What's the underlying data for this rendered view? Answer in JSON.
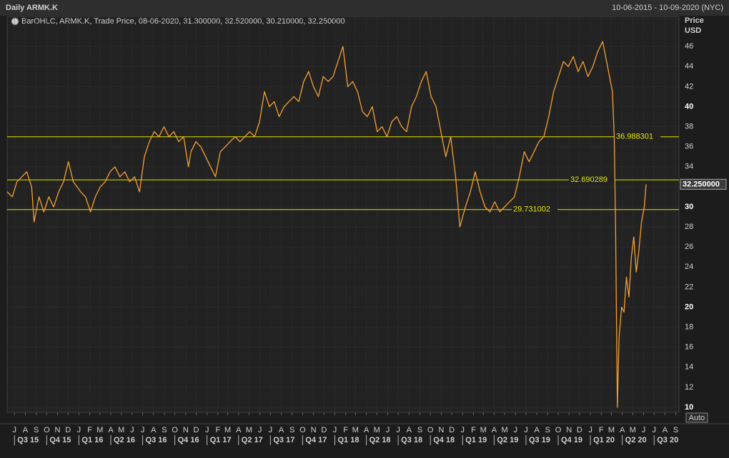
{
  "chart_data": {
    "type": "line",
    "title": "Daily ARMK.K",
    "date_range": "10-06-2015 - 10-09-2020 (NYC)",
    "legend_text": "BarOHLC, ARMK.K, Trade Price, 08-06-2020, 31.300000, 32.520000, 30.210000, 32.250000",
    "ylabel": "Price",
    "yunit": "USD",
    "auto_button": "Auto",
    "color": "#f5a033",
    "level_color": "#e6e600",
    "grid": true,
    "ylim": [
      9.5,
      49
    ],
    "yticks": [
      10,
      12,
      14,
      16,
      18,
      20,
      22,
      24,
      26,
      28,
      30,
      32,
      34,
      36,
      38,
      40,
      42,
      44,
      46
    ],
    "xlim": [
      "2015-06-10",
      "2020-09-10"
    ],
    "levels": [
      36.988301,
      32.690289,
      29.731002
    ],
    "last_value": 32.25,
    "last_value_label": "32.250000",
    "x": [
      "2015-06-10",
      "2015-06-25",
      "2015-07-08",
      "2015-07-22",
      "2015-08-05",
      "2015-08-19",
      "2015-08-26",
      "2015-09-09",
      "2015-09-23",
      "2015-10-07",
      "2015-10-21",
      "2015-11-04",
      "2015-11-18",
      "2015-12-02",
      "2015-12-16",
      "2016-01-06",
      "2016-01-20",
      "2016-02-03",
      "2016-02-17",
      "2016-03-02",
      "2016-03-16",
      "2016-03-30",
      "2016-04-13",
      "2016-04-27",
      "2016-05-11",
      "2016-05-25",
      "2016-06-08",
      "2016-06-22",
      "2016-07-06",
      "2016-07-20",
      "2016-08-03",
      "2016-08-17",
      "2016-08-31",
      "2016-09-14",
      "2016-09-28",
      "2016-10-12",
      "2016-10-26",
      "2016-11-09",
      "2016-11-16",
      "2016-11-30",
      "2016-12-14",
      "2016-12-28",
      "2017-01-11",
      "2017-01-25",
      "2017-02-08",
      "2017-02-22",
      "2017-03-08",
      "2017-03-22",
      "2017-04-05",
      "2017-04-19",
      "2017-05-03",
      "2017-05-17",
      "2017-05-31",
      "2017-06-14",
      "2017-06-28",
      "2017-07-12",
      "2017-07-26",
      "2017-08-09",
      "2017-08-23",
      "2017-09-06",
      "2017-09-20",
      "2017-10-04",
      "2017-10-18",
      "2017-11-01",
      "2017-11-15",
      "2017-11-29",
      "2017-12-13",
      "2017-12-27",
      "2018-01-10",
      "2018-01-24",
      "2018-02-07",
      "2018-02-21",
      "2018-03-07",
      "2018-03-21",
      "2018-04-04",
      "2018-04-18",
      "2018-05-02",
      "2018-05-16",
      "2018-05-30",
      "2018-06-13",
      "2018-06-27",
      "2018-07-11",
      "2018-07-25",
      "2018-08-08",
      "2018-08-22",
      "2018-09-05",
      "2018-09-19",
      "2018-10-03",
      "2018-10-17",
      "2018-10-31",
      "2018-11-14",
      "2018-11-28",
      "2018-12-12",
      "2018-12-24",
      "2019-01-09",
      "2019-01-23",
      "2019-02-06",
      "2019-02-20",
      "2019-03-06",
      "2019-03-20",
      "2019-04-03",
      "2019-04-17",
      "2019-05-01",
      "2019-05-15",
      "2019-05-29",
      "2019-06-12",
      "2019-06-26",
      "2019-07-10",
      "2019-07-24",
      "2019-08-07",
      "2019-08-21",
      "2019-09-04",
      "2019-09-18",
      "2019-10-02",
      "2019-10-16",
      "2019-10-30",
      "2019-11-13",
      "2019-11-27",
      "2019-12-11",
      "2019-12-25",
      "2020-01-08",
      "2020-01-22",
      "2020-02-05",
      "2020-02-19",
      "2020-03-04",
      "2020-03-09",
      "2020-03-13",
      "2020-03-18",
      "2020-03-23",
      "2020-03-30",
      "2020-04-06",
      "2020-04-13",
      "2020-04-20",
      "2020-04-27",
      "2020-05-04",
      "2020-05-11",
      "2020-05-18",
      "2020-05-26",
      "2020-06-03",
      "2020-06-08"
    ],
    "values": [
      31.5,
      31.0,
      32.5,
      33.0,
      33.5,
      32.0,
      28.5,
      31.0,
      29.5,
      31.0,
      30.0,
      31.5,
      32.5,
      34.5,
      32.5,
      31.5,
      31.0,
      29.5,
      31.0,
      32.0,
      32.5,
      33.5,
      34.0,
      33.0,
      33.5,
      32.5,
      33.0,
      31.5,
      35.0,
      36.5,
      37.5,
      37.0,
      38.0,
      37.0,
      37.5,
      36.5,
      37.0,
      34.0,
      35.5,
      36.5,
      36.0,
      35.0,
      34.0,
      33.0,
      35.5,
      36.0,
      36.5,
      37.0,
      36.5,
      37.0,
      37.5,
      37.0,
      38.5,
      41.5,
      40.0,
      40.5,
      39.0,
      40.0,
      40.5,
      41.0,
      40.5,
      42.5,
      43.5,
      42.0,
      41.0,
      43.0,
      42.5,
      43.0,
      44.5,
      46.0,
      42.0,
      42.5,
      41.5,
      39.5,
      39.0,
      40.0,
      37.5,
      38.0,
      37.0,
      38.5,
      39.0,
      38.0,
      37.5,
      40.0,
      41.0,
      42.5,
      43.5,
      41.0,
      40.0,
      37.5,
      35.0,
      37.0,
      33.0,
      28.0,
      30.0,
      31.5,
      33.5,
      31.5,
      30.0,
      29.5,
      30.5,
      29.5,
      30.0,
      30.5,
      31.0,
      33.0,
      35.5,
      34.5,
      35.5,
      36.5,
      37.0,
      39.0,
      41.5,
      43.0,
      44.5,
      44.0,
      45.0,
      43.5,
      44.5,
      43.0,
      44.0,
      45.5,
      46.5,
      44.0,
      41.5,
      37.0,
      28.0,
      10.0,
      17.0,
      20.0,
      19.5,
      23.0,
      21.0,
      25.0,
      27.0,
      23.5,
      25.5,
      28.5,
      30.0,
      32.25
    ],
    "xticks": [
      {
        "value": "2015-07-01",
        "label": "J"
      },
      {
        "value": "2015-08-01",
        "label": "A"
      },
      {
        "value": "2015-09-01",
        "label": "S"
      },
      {
        "value": "2015-10-01",
        "label": "O"
      },
      {
        "value": "2015-11-01",
        "label": "N"
      },
      {
        "value": "2015-12-01",
        "label": "D"
      },
      {
        "value": "2016-01-01",
        "label": "J"
      },
      {
        "value": "2016-02-01",
        "label": "F"
      },
      {
        "value": "2016-03-01",
        "label": "M"
      },
      {
        "value": "2016-04-01",
        "label": "A"
      },
      {
        "value": "2016-05-01",
        "label": "M"
      },
      {
        "value": "2016-06-01",
        "label": "J"
      },
      {
        "value": "2016-07-01",
        "label": "J"
      },
      {
        "value": "2016-08-01",
        "label": "A"
      },
      {
        "value": "2016-09-01",
        "label": "S"
      },
      {
        "value": "2016-10-01",
        "label": "O"
      },
      {
        "value": "2016-11-01",
        "label": "N"
      },
      {
        "value": "2016-12-01",
        "label": "D"
      },
      {
        "value": "2017-01-01",
        "label": "J"
      },
      {
        "value": "2017-02-01",
        "label": "F"
      },
      {
        "value": "2017-03-01",
        "label": "M"
      },
      {
        "value": "2017-04-01",
        "label": "A"
      },
      {
        "value": "2017-05-01",
        "label": "M"
      },
      {
        "value": "2017-06-01",
        "label": "J"
      },
      {
        "value": "2017-07-01",
        "label": "J"
      },
      {
        "value": "2017-08-01",
        "label": "A"
      },
      {
        "value": "2017-09-01",
        "label": "S"
      },
      {
        "value": "2017-10-01",
        "label": "O"
      },
      {
        "value": "2017-11-01",
        "label": "N"
      },
      {
        "value": "2017-12-01",
        "label": "D"
      },
      {
        "value": "2018-01-01",
        "label": "J"
      },
      {
        "value": "2018-02-01",
        "label": "F"
      },
      {
        "value": "2018-03-01",
        "label": "M"
      },
      {
        "value": "2018-04-01",
        "label": "A"
      },
      {
        "value": "2018-05-01",
        "label": "M"
      },
      {
        "value": "2018-06-01",
        "label": "J"
      },
      {
        "value": "2018-07-01",
        "label": "J"
      },
      {
        "value": "2018-08-01",
        "label": "A"
      },
      {
        "value": "2018-09-01",
        "label": "S"
      },
      {
        "value": "2018-10-01",
        "label": "O"
      },
      {
        "value": "2018-11-01",
        "label": "N"
      },
      {
        "value": "2018-12-01",
        "label": "D"
      },
      {
        "value": "2019-01-01",
        "label": "J"
      },
      {
        "value": "2019-02-01",
        "label": "F"
      },
      {
        "value": "2019-03-01",
        "label": "M"
      },
      {
        "value": "2019-04-01",
        "label": "A"
      },
      {
        "value": "2019-05-01",
        "label": "M"
      },
      {
        "value": "2019-06-01",
        "label": "J"
      },
      {
        "value": "2019-07-01",
        "label": "J"
      },
      {
        "value": "2019-08-01",
        "label": "A"
      },
      {
        "value": "2019-09-01",
        "label": "S"
      },
      {
        "value": "2019-10-01",
        "label": "O"
      },
      {
        "value": "2019-11-01",
        "label": "N"
      },
      {
        "value": "2019-12-01",
        "label": "D"
      },
      {
        "value": "2020-01-01",
        "label": "J"
      },
      {
        "value": "2020-02-01",
        "label": "F"
      },
      {
        "value": "2020-03-01",
        "label": "M"
      },
      {
        "value": "2020-04-01",
        "label": "A"
      },
      {
        "value": "2020-05-01",
        "label": "M"
      },
      {
        "value": "2020-06-01",
        "label": "J"
      },
      {
        "value": "2020-07-01",
        "label": "J"
      },
      {
        "value": "2020-08-01",
        "label": "A"
      },
      {
        "value": "2020-09-01",
        "label": "S"
      }
    ],
    "quarters": [
      {
        "value": "2015-07-01",
        "label": "Q3 15"
      },
      {
        "value": "2015-10-01",
        "label": "Q4 15"
      },
      {
        "value": "2016-01-01",
        "label": "Q1 16"
      },
      {
        "value": "2016-04-01",
        "label": "Q2 16"
      },
      {
        "value": "2016-07-01",
        "label": "Q3 16"
      },
      {
        "value": "2016-10-01",
        "label": "Q4 16"
      },
      {
        "value": "2017-01-01",
        "label": "Q1 17"
      },
      {
        "value": "2017-04-01",
        "label": "Q2 17"
      },
      {
        "value": "2017-07-01",
        "label": "Q3 17"
      },
      {
        "value": "2017-10-01",
        "label": "Q4 17"
      },
      {
        "value": "2018-01-01",
        "label": "Q1 18"
      },
      {
        "value": "2018-04-01",
        "label": "Q2 18"
      },
      {
        "value": "2018-07-01",
        "label": "Q3 18"
      },
      {
        "value": "2018-10-01",
        "label": "Q4 18"
      },
      {
        "value": "2019-01-01",
        "label": "Q1 19"
      },
      {
        "value": "2019-04-01",
        "label": "Q2 19"
      },
      {
        "value": "2019-07-01",
        "label": "Q3 19"
      },
      {
        "value": "2019-10-01",
        "label": "Q4 19"
      },
      {
        "value": "2020-01-01",
        "label": "Q1 20"
      },
      {
        "value": "2020-04-01",
        "label": "Q2 20"
      },
      {
        "value": "2020-07-01",
        "label": "Q3 20"
      }
    ]
  }
}
